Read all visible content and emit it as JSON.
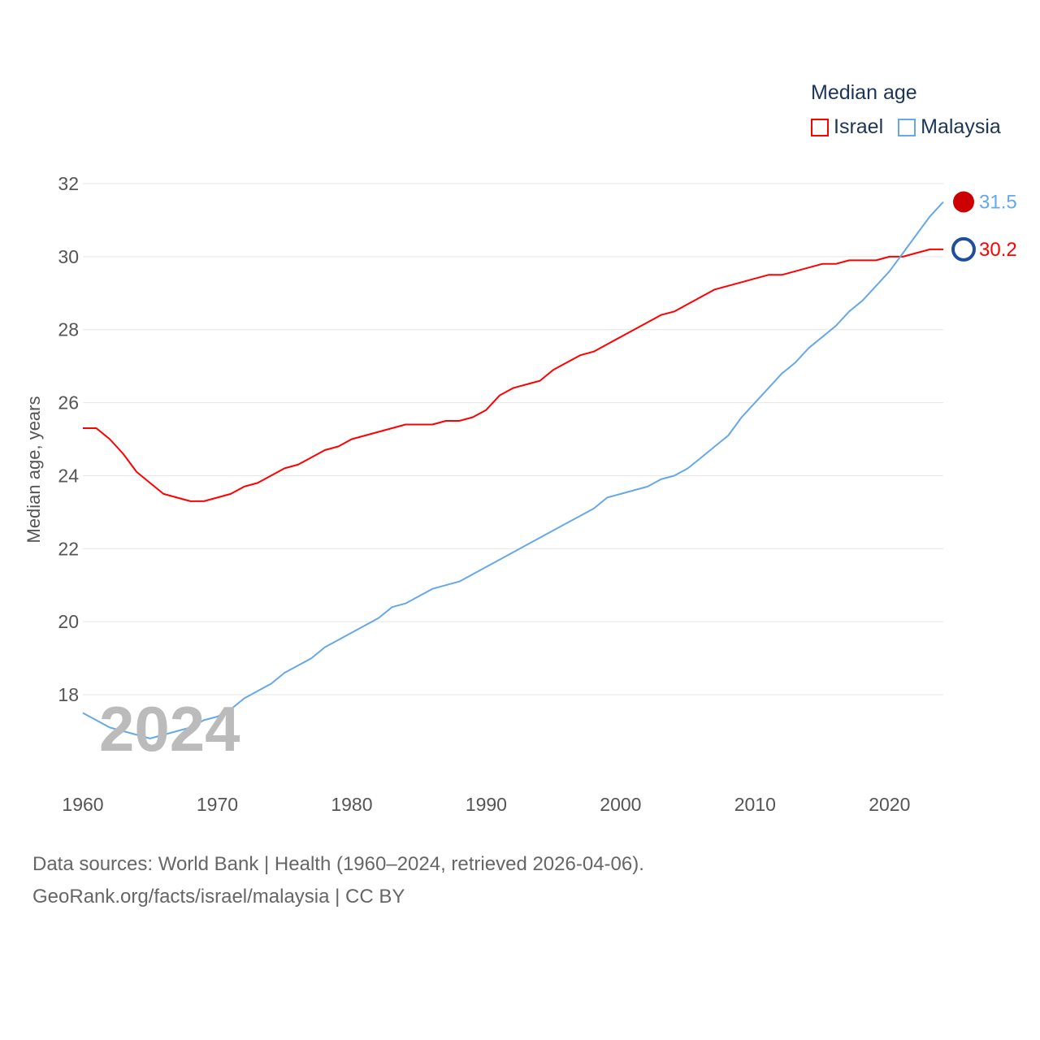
{
  "chart_data": {
    "type": "line",
    "title": "",
    "legend_title": "Median age",
    "legend_position": "top-right",
    "ylabel": "Median age, years",
    "xlabel": "",
    "xlim": [
      1960,
      2024
    ],
    "ylim": [
      16,
      32
    ],
    "yticks": [
      18,
      20,
      22,
      24,
      26,
      28,
      30,
      32
    ],
    "xticks": [
      1960,
      1970,
      1980,
      1990,
      2000,
      2010,
      2020
    ],
    "grid": true,
    "current_year_label": "2024",
    "x": [
      1960,
      1961,
      1962,
      1963,
      1964,
      1965,
      1966,
      1967,
      1968,
      1969,
      1970,
      1971,
      1972,
      1973,
      1974,
      1975,
      1976,
      1977,
      1978,
      1979,
      1980,
      1981,
      1982,
      1983,
      1984,
      1985,
      1986,
      1987,
      1988,
      1989,
      1990,
      1991,
      1992,
      1993,
      1994,
      1995,
      1996,
      1997,
      1998,
      1999,
      2000,
      2001,
      2002,
      2003,
      2004,
      2005,
      2006,
      2007,
      2008,
      2009,
      2010,
      2011,
      2012,
      2013,
      2014,
      2015,
      2016,
      2017,
      2018,
      2019,
      2020,
      2021,
      2022,
      2023,
      2024
    ],
    "series": [
      {
        "name": "Israel",
        "color": "#ff0000",
        "end_label": "30.2",
        "values": [
          25.3,
          25.3,
          25.0,
          24.6,
          24.1,
          23.8,
          23.5,
          23.4,
          23.3,
          23.3,
          23.4,
          23.5,
          23.7,
          23.8,
          24.0,
          24.2,
          24.3,
          24.5,
          24.7,
          24.8,
          25.0,
          25.1,
          25.2,
          25.3,
          25.4,
          25.4,
          25.4,
          25.5,
          25.5,
          25.6,
          25.8,
          26.2,
          26.4,
          26.5,
          26.6,
          26.9,
          27.1,
          27.3,
          27.4,
          27.6,
          27.8,
          28.0,
          28.2,
          28.4,
          28.5,
          28.7,
          28.9,
          29.1,
          29.2,
          29.3,
          29.4,
          29.5,
          29.5,
          29.6,
          29.7,
          29.8,
          29.8,
          29.9,
          29.9,
          29.9,
          30.0,
          30.0,
          30.1,
          30.2,
          30.2
        ]
      },
      {
        "name": "Malaysia",
        "color": "#66a8e8",
        "end_label": "31.5",
        "values": [
          17.5,
          17.3,
          17.1,
          17.0,
          16.9,
          16.8,
          16.9,
          17.0,
          17.1,
          17.3,
          17.4,
          17.6,
          17.9,
          18.1,
          18.3,
          18.6,
          18.8,
          19.0,
          19.3,
          19.5,
          19.7,
          19.9,
          20.1,
          20.4,
          20.5,
          20.7,
          20.9,
          21.0,
          21.1,
          21.3,
          21.5,
          21.7,
          21.9,
          22.1,
          22.3,
          22.5,
          22.7,
          22.9,
          23.1,
          23.4,
          23.5,
          23.6,
          23.7,
          23.9,
          24.0,
          24.2,
          24.5,
          24.8,
          25.1,
          25.6,
          26.0,
          26.4,
          26.8,
          27.1,
          27.5,
          27.8,
          28.1,
          28.5,
          28.8,
          29.2,
          29.6,
          30.1,
          30.6,
          31.1,
          31.5
        ]
      }
    ]
  },
  "footer": {
    "line1": "Data sources: World Bank | Health (1960–2024, retrieved 2026-04-06).",
    "line2": "GeoRank.org/facts/israel/malaysia | CC BY"
  }
}
